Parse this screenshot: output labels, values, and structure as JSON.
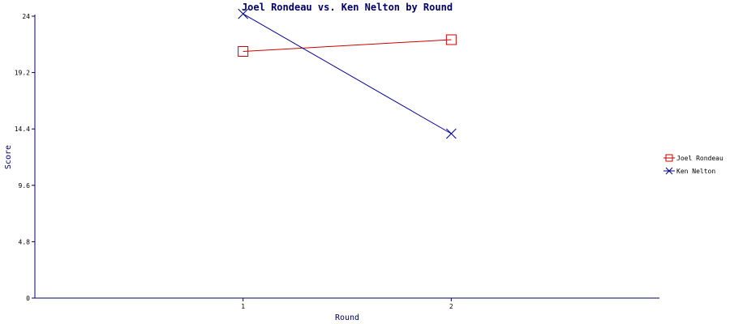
{
  "chart_data": {
    "type": "line",
    "title": "Joel Rondeau vs. Ken Nelton by Round",
    "xlabel": "Round",
    "ylabel": "Score",
    "x": [
      1,
      2
    ],
    "x_tick_labels": [
      "1",
      "2"
    ],
    "xlim": [
      0,
      3
    ],
    "ylim": [
      0,
      24
    ],
    "y_ticks": [
      0,
      4.8,
      9.6,
      14.4,
      19.2,
      24
    ],
    "y_tick_labels": [
      "0",
      "4.8",
      "9.6",
      "14.4",
      "19.2",
      "24"
    ],
    "grid": false,
    "legend_position": "right",
    "series": [
      {
        "name": "Joel Rondeau",
        "values": [
          21,
          22
        ],
        "color": "#cc0000",
        "marker": "square"
      },
      {
        "name": "Ken Nelton",
        "values": [
          24.2,
          14.0
        ],
        "color": "#000099",
        "marker": "x"
      }
    ],
    "axis_color": "#000066"
  }
}
